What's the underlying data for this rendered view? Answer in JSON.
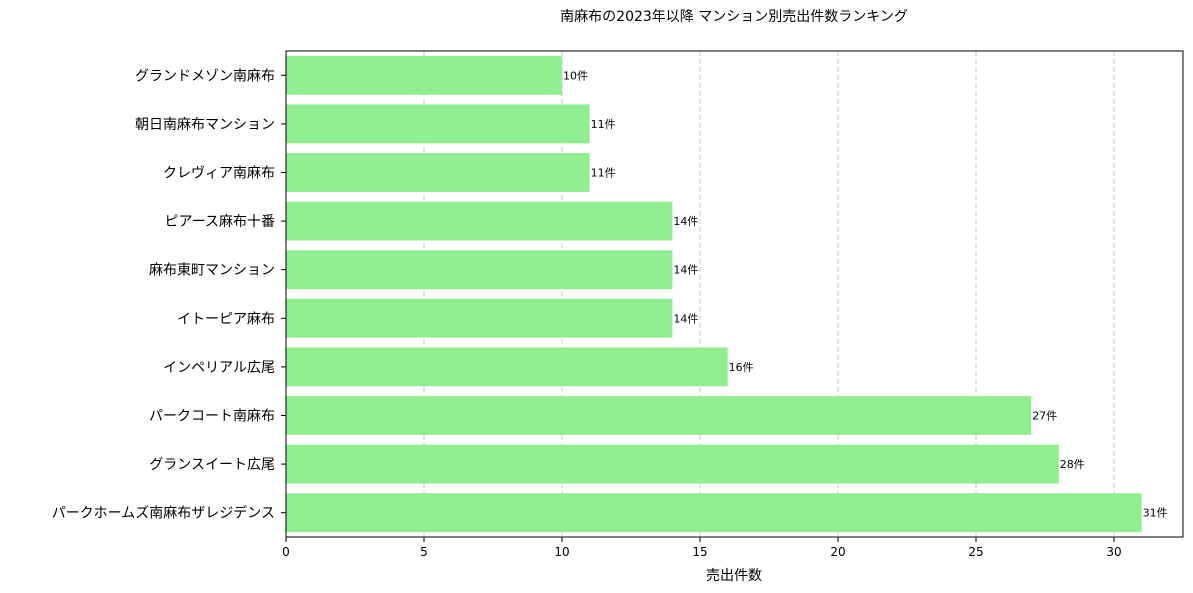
{
  "chart_data": {
    "type": "bar",
    "orientation": "horizontal",
    "title": "南麻布の2023年以降 マンション別売出件数ランキング",
    "xlabel": "売出件数",
    "ylabel": "",
    "xlim": [
      0,
      32.5
    ],
    "xticks": [
      0,
      5,
      10,
      15,
      20,
      25,
      30
    ],
    "grid": "x-dashed",
    "bar_color": "#90ee90",
    "value_suffix": "件",
    "categories": [
      "グランドメゾン南麻布",
      "朝日南麻布マンション",
      "クレヴィア南麻布",
      "ピアース麻布十番",
      "麻布東町マンション",
      "イトーピア麻布",
      "インペリアル広尾",
      "パークコート南麻布",
      "グランスイート広尾",
      "パークホームズ南麻布ザレジデンス"
    ],
    "values": [
      10,
      11,
      11,
      14,
      14,
      14,
      16,
      27,
      28,
      31
    ],
    "data_labels": [
      "10件",
      "11件",
      "11件",
      "14件",
      "14件",
      "14件",
      "16件",
      "27件",
      "28件",
      "31件"
    ]
  }
}
